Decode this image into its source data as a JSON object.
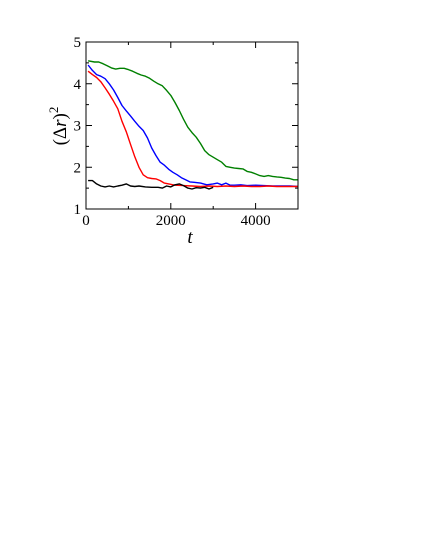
{
  "chart_data": {
    "type": "line",
    "title": "",
    "xlabel": "t",
    "ylabel": "(Δr)",
    "ylabel_parts": {
      "open": "(",
      "delta": "Δ",
      "var": "r",
      "close": ")",
      "exponent": "2"
    },
    "xlim": [
      0,
      5000
    ],
    "ylim": [
      1,
      5
    ],
    "xticks": [
      0,
      2000,
      4000
    ],
    "yticks": [
      1,
      2,
      3,
      4,
      5
    ],
    "grid": false,
    "legend": "none",
    "series": [
      {
        "color": "#008000",
        "points": [
          [
            50,
            4.55
          ],
          [
            200,
            4.52
          ],
          [
            300,
            4.52
          ],
          [
            400,
            4.48
          ],
          [
            500,
            4.43
          ],
          [
            600,
            4.38
          ],
          [
            700,
            4.35
          ],
          [
            800,
            4.37
          ],
          [
            900,
            4.37
          ],
          [
            1000,
            4.34
          ],
          [
            1100,
            4.3
          ],
          [
            1200,
            4.25
          ],
          [
            1300,
            4.21
          ],
          [
            1400,
            4.18
          ],
          [
            1500,
            4.13
          ],
          [
            1600,
            4.06
          ],
          [
            1700,
            4.0
          ],
          [
            1800,
            3.95
          ],
          [
            1900,
            3.84
          ],
          [
            2000,
            3.72
          ],
          [
            2100,
            3.55
          ],
          [
            2200,
            3.36
          ],
          [
            2300,
            3.15
          ],
          [
            2400,
            2.96
          ],
          [
            2500,
            2.83
          ],
          [
            2600,
            2.72
          ],
          [
            2700,
            2.57
          ],
          [
            2800,
            2.4
          ],
          [
            2900,
            2.3
          ],
          [
            3000,
            2.24
          ],
          [
            3100,
            2.18
          ],
          [
            3200,
            2.12
          ],
          [
            3300,
            2.02
          ],
          [
            3400,
            2.0
          ],
          [
            3500,
            1.98
          ],
          [
            3600,
            1.97
          ],
          [
            3700,
            1.96
          ],
          [
            3800,
            1.9
          ],
          [
            3900,
            1.88
          ],
          [
            4000,
            1.84
          ],
          [
            4100,
            1.8
          ],
          [
            4200,
            1.78
          ],
          [
            4300,
            1.8
          ],
          [
            4400,
            1.78
          ],
          [
            4500,
            1.77
          ],
          [
            4600,
            1.76
          ],
          [
            4700,
            1.74
          ],
          [
            4800,
            1.73
          ],
          [
            4900,
            1.7
          ],
          [
            5000,
            1.7
          ]
        ]
      },
      {
        "color": "#0000ff",
        "points": [
          [
            50,
            4.45
          ],
          [
            150,
            4.32
          ],
          [
            250,
            4.22
          ],
          [
            350,
            4.18
          ],
          [
            450,
            4.12
          ],
          [
            550,
            4.0
          ],
          [
            650,
            3.85
          ],
          [
            750,
            3.67
          ],
          [
            850,
            3.48
          ],
          [
            950,
            3.35
          ],
          [
            1050,
            3.23
          ],
          [
            1150,
            3.1
          ],
          [
            1250,
            2.98
          ],
          [
            1350,
            2.88
          ],
          [
            1450,
            2.7
          ],
          [
            1550,
            2.46
          ],
          [
            1650,
            2.28
          ],
          [
            1750,
            2.12
          ],
          [
            1850,
            2.05
          ],
          [
            1950,
            1.95
          ],
          [
            2050,
            1.88
          ],
          [
            2150,
            1.82
          ],
          [
            2250,
            1.75
          ],
          [
            2350,
            1.7
          ],
          [
            2450,
            1.65
          ],
          [
            2550,
            1.64
          ],
          [
            2700,
            1.62
          ],
          [
            2850,
            1.58
          ],
          [
            3000,
            1.6
          ],
          [
            3100,
            1.62
          ],
          [
            3200,
            1.58
          ],
          [
            3300,
            1.62
          ],
          [
            3400,
            1.57
          ],
          [
            3500,
            1.57
          ],
          [
            3650,
            1.58
          ],
          [
            3800,
            1.56
          ],
          [
            4000,
            1.57
          ],
          [
            4200,
            1.56
          ],
          [
            4400,
            1.55
          ],
          [
            4600,
            1.55
          ],
          [
            4800,
            1.55
          ],
          [
            5000,
            1.54
          ]
        ]
      },
      {
        "color": "#ff0000",
        "points": [
          [
            50,
            4.3
          ],
          [
            150,
            4.22
          ],
          [
            250,
            4.15
          ],
          [
            350,
            4.05
          ],
          [
            450,
            3.9
          ],
          [
            550,
            3.75
          ],
          [
            650,
            3.58
          ],
          [
            750,
            3.4
          ],
          [
            850,
            3.1
          ],
          [
            950,
            2.85
          ],
          [
            1050,
            2.55
          ],
          [
            1150,
            2.25
          ],
          [
            1250,
            2.0
          ],
          [
            1350,
            1.82
          ],
          [
            1450,
            1.75
          ],
          [
            1550,
            1.73
          ],
          [
            1650,
            1.72
          ],
          [
            1750,
            1.68
          ],
          [
            1850,
            1.62
          ],
          [
            1950,
            1.6
          ],
          [
            2100,
            1.57
          ],
          [
            2300,
            1.56
          ],
          [
            2500,
            1.55
          ],
          [
            2700,
            1.54
          ],
          [
            2900,
            1.55
          ],
          [
            3100,
            1.54
          ],
          [
            3300,
            1.55
          ],
          [
            3500,
            1.54
          ],
          [
            3700,
            1.55
          ],
          [
            3900,
            1.54
          ],
          [
            4100,
            1.54
          ],
          [
            4300,
            1.55
          ],
          [
            4500,
            1.54
          ],
          [
            4700,
            1.54
          ],
          [
            5000,
            1.54
          ]
        ]
      },
      {
        "color": "#000000",
        "points": [
          [
            50,
            1.68
          ],
          [
            150,
            1.68
          ],
          [
            250,
            1.6
          ],
          [
            350,
            1.55
          ],
          [
            450,
            1.53
          ],
          [
            550,
            1.55
          ],
          [
            650,
            1.53
          ],
          [
            750,
            1.55
          ],
          [
            850,
            1.57
          ],
          [
            950,
            1.6
          ],
          [
            1050,
            1.55
          ],
          [
            1150,
            1.54
          ],
          [
            1250,
            1.55
          ],
          [
            1400,
            1.53
          ],
          [
            1550,
            1.52
          ],
          [
            1700,
            1.52
          ],
          [
            1800,
            1.5
          ],
          [
            1900,
            1.55
          ],
          [
            2000,
            1.53
          ],
          [
            2100,
            1.58
          ],
          [
            2200,
            1.6
          ],
          [
            2300,
            1.56
          ],
          [
            2400,
            1.5
          ],
          [
            2500,
            1.48
          ],
          [
            2600,
            1.51
          ],
          [
            2700,
            1.5
          ],
          [
            2800,
            1.52
          ],
          [
            2900,
            1.48
          ],
          [
            3000,
            1.52
          ]
        ]
      }
    ]
  }
}
